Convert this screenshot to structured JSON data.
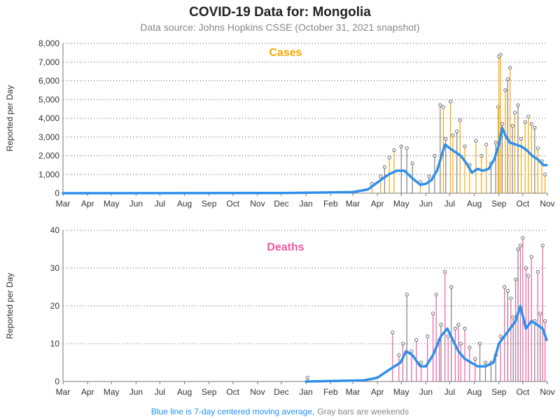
{
  "title": "COVID-19 Data for: Mongolia",
  "subtitle": "Data source: Johns Hopkins CSSE (October 31, 2021 snapshot)",
  "footer": {
    "blue_note": "Blue line is 7-day centered moving average,",
    "gray_note": "Gray bars are weekends",
    "blue_color": "#1e90ff",
    "gray_color": "#888888"
  },
  "colors": {
    "cases": "#f5a700",
    "deaths": "#ef5ba1",
    "average": "#2f8fea",
    "weekend": "#808080"
  },
  "chart_data": [
    {
      "type": "bar",
      "title": "Cases",
      "ylabel": "Reported per Day",
      "x_range": [
        "2020-03-01",
        "2021-11-01"
      ],
      "x_tick_labels": [
        "Mar",
        "Apr",
        "May",
        "Jun",
        "Jul",
        "Aug",
        "Sep",
        "Oct",
        "Nov",
        "Dec",
        "Jan",
        "Feb",
        "Mar",
        "Apr",
        "May",
        "Jun",
        "Jul",
        "Aug",
        "Sep",
        "Oct",
        "Nov"
      ],
      "ylim": [
        0,
        8000
      ],
      "y_ticks": [
        0,
        1000,
        2000,
        3000,
        4000,
        5000,
        6000,
        7000,
        8000
      ],
      "y_tick_labels": [
        "0",
        "1,000",
        "2,000",
        "3,000",
        "4,000",
        "5,000",
        "6,000",
        "7,000",
        "8,000"
      ],
      "grid": "horizontal dotted",
      "series": [
        {
          "name": "7-day centered moving average",
          "x": [
            "2020-03-01",
            "2020-12-01",
            "2021-02-01",
            "2021-03-01",
            "2021-03-20",
            "2021-04-05",
            "2021-04-15",
            "2021-04-25",
            "2021-05-05",
            "2021-05-15",
            "2021-05-25",
            "2021-06-01",
            "2021-06-08",
            "2021-06-15",
            "2021-06-20",
            "2021-06-25",
            "2021-07-01",
            "2021-07-08",
            "2021-07-15",
            "2021-07-22",
            "2021-07-29",
            "2021-08-05",
            "2021-08-12",
            "2021-08-19",
            "2021-08-26",
            "2021-09-01",
            "2021-09-05",
            "2021-09-10",
            "2021-09-15",
            "2021-09-22",
            "2021-09-29",
            "2021-10-06",
            "2021-10-13",
            "2021-10-20",
            "2021-10-27",
            "2021-10-31"
          ],
          "values": [
            0,
            10,
            40,
            60,
            200,
            700,
            1000,
            1200,
            1200,
            800,
            450,
            500,
            700,
            1200,
            1900,
            2600,
            2400,
            2200,
            2000,
            1600,
            1100,
            1300,
            1200,
            1300,
            1800,
            2600,
            3500,
            3000,
            2700,
            2600,
            2500,
            2300,
            2000,
            1800,
            1500,
            1500
          ]
        },
        {
          "name": "daily cases",
          "x": [
            "2021-03-25",
            "2021-04-05",
            "2021-04-10",
            "2021-04-16",
            "2021-04-22",
            "2021-05-01",
            "2021-05-08",
            "2021-05-15",
            "2021-05-25",
            "2021-06-05",
            "2021-06-12",
            "2021-06-19",
            "2021-06-23",
            "2021-06-26",
            "2021-07-02",
            "2021-07-05",
            "2021-07-10",
            "2021-07-14",
            "2021-07-20",
            "2021-07-26",
            "2021-08-03",
            "2021-08-10",
            "2021-08-16",
            "2021-08-22",
            "2021-08-28",
            "2021-08-31",
            "2021-09-01",
            "2021-09-03",
            "2021-09-05",
            "2021-09-09",
            "2021-09-12",
            "2021-09-15",
            "2021-09-18",
            "2021-09-21",
            "2021-09-25",
            "2021-09-29",
            "2021-10-04",
            "2021-10-08",
            "2021-10-12",
            "2021-10-16",
            "2021-10-20",
            "2021-10-25",
            "2021-10-29"
          ],
          "values": [
            500,
            900,
            1400,
            1900,
            2300,
            2500,
            2400,
            1600,
            600,
            900,
            2000,
            4700,
            4600,
            2900,
            4900,
            3100,
            3300,
            3900,
            2500,
            1500,
            2800,
            2000,
            2600,
            1600,
            2700,
            4600,
            7300,
            7400,
            3700,
            5500,
            6100,
            6700,
            3600,
            4300,
            4700,
            2900,
            3800,
            4100,
            3700,
            3500,
            2400,
            1700,
            1000
          ]
        }
      ]
    },
    {
      "type": "bar",
      "title": "Deaths",
      "ylabel": "Reported per Day",
      "x_range": [
        "2020-03-01",
        "2021-11-01"
      ],
      "x_tick_labels": [
        "Mar",
        "Apr",
        "May",
        "Jun",
        "Jul",
        "Aug",
        "Sep",
        "Oct",
        "Nov",
        "Dec",
        "Jan",
        "Feb",
        "Mar",
        "Apr",
        "May",
        "Jun",
        "Jul",
        "Aug",
        "Sep",
        "Oct",
        "Nov"
      ],
      "ylim": [
        0,
        40
      ],
      "y_ticks": [
        0,
        10,
        20,
        30,
        40
      ],
      "y_tick_labels": [
        "0",
        "10",
        "20",
        "30",
        "40"
      ],
      "grid": "horizontal dotted",
      "series": [
        {
          "name": "7-day centered moving average",
          "x": [
            "2021-01-01",
            "2021-03-15",
            "2021-04-01",
            "2021-04-15",
            "2021-04-30",
            "2021-05-07",
            "2021-05-15",
            "2021-05-25",
            "2021-06-01",
            "2021-06-10",
            "2021-06-20",
            "2021-06-28",
            "2021-07-05",
            "2021-07-12",
            "2021-07-20",
            "2021-07-28",
            "2021-08-05",
            "2021-08-15",
            "2021-08-25",
            "2021-09-01",
            "2021-09-08",
            "2021-09-15",
            "2021-09-22",
            "2021-09-28",
            "2021-10-05",
            "2021-10-12",
            "2021-10-19",
            "2021-10-26",
            "2021-10-31"
          ],
          "values": [
            0,
            0.3,
            1,
            3,
            5,
            8,
            7,
            4,
            4,
            7,
            12,
            14,
            11,
            8,
            6,
            5,
            4,
            4,
            5,
            10,
            12,
            14,
            16,
            20,
            14,
            16,
            15,
            14,
            11
          ]
        },
        {
          "name": "daily deaths",
          "x": [
            "2021-01-03",
            "2021-04-20",
            "2021-04-28",
            "2021-05-03",
            "2021-05-08",
            "2021-05-14",
            "2021-05-20",
            "2021-05-26",
            "2021-06-03",
            "2021-06-10",
            "2021-06-14",
            "2021-06-18",
            "2021-06-20",
            "2021-06-25",
            "2021-06-29",
            "2021-07-03",
            "2021-07-08",
            "2021-07-12",
            "2021-07-15",
            "2021-07-20",
            "2021-07-26",
            "2021-08-02",
            "2021-08-08",
            "2021-08-15",
            "2021-08-22",
            "2021-08-28",
            "2021-09-03",
            "2021-09-08",
            "2021-09-12",
            "2021-09-16",
            "2021-09-19",
            "2021-09-22",
            "2021-09-25",
            "2021-09-28",
            "2021-10-01",
            "2021-10-05",
            "2021-10-08",
            "2021-10-12",
            "2021-10-16",
            "2021-10-20",
            "2021-10-23",
            "2021-10-26",
            "2021-10-29"
          ],
          "values": [
            1,
            13,
            7,
            10,
            23,
            8,
            11,
            5,
            12,
            18,
            23,
            11,
            15,
            29,
            12,
            25,
            14,
            15,
            10,
            14,
            9,
            6,
            10,
            5,
            5,
            7,
            12,
            25,
            24,
            22,
            17,
            27,
            35,
            36,
            38,
            30,
            28,
            33,
            16,
            29,
            18,
            36,
            16
          ]
        }
      ]
    }
  ]
}
